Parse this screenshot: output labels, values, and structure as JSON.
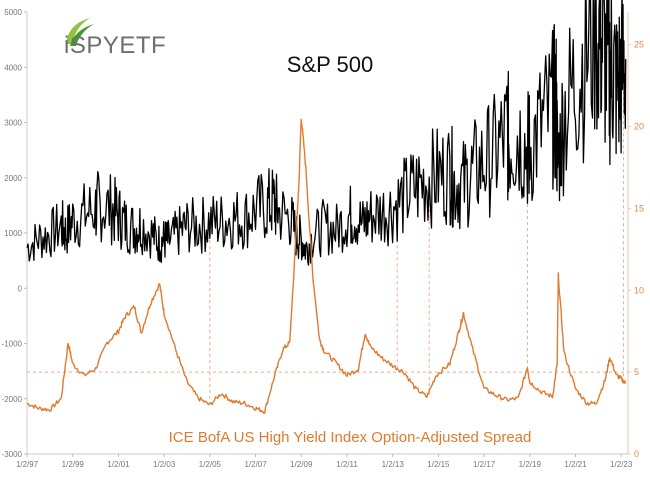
{
  "logo": {
    "text": "iSPYETF",
    "colors": {
      "swoosh_dark": "#3f9a36",
      "swoosh_light": "#8cc43c",
      "text": "#6d6e70"
    }
  },
  "chart_data": {
    "type": "line",
    "title": "S&P 500",
    "series_label": "ICE BofA US High Yield Index Option-Adjusted Spread",
    "colors": {
      "sp500": "#000000",
      "spread": "#e07a2e",
      "guides": "#f2a98a",
      "right_axis": "#e08a4a"
    },
    "x_ticks": [
      "1/2/97",
      "1/2/99",
      "1/2/01",
      "1/2/03",
      "1/2/05",
      "1/2/07",
      "1/2/09",
      "1/2/11",
      "1/2/13",
      "1/2/15",
      "1/2/17",
      "1/2/19",
      "1/2/21",
      "1/2/23"
    ],
    "xlim": [
      1997.0,
      2023.3
    ],
    "left_axis": {
      "ticks": [
        "5000",
        "4000",
        "3000",
        "2000",
        "1000",
        "0",
        "-1000",
        "-2000",
        "-3000"
      ],
      "ylim": [
        -3000,
        5000
      ]
    },
    "right_axis": {
      "ticks": [
        "25",
        "20",
        "15",
        "10",
        "5",
        "0"
      ],
      "ylim": [
        0,
        27
      ]
    },
    "grid": false,
    "guide_lines": {
      "vertical_years": [
        2005.0,
        2013.2,
        2014.6,
        2018.9,
        2023.1
      ],
      "horizontal_spread_value": 5
    },
    "series": [
      {
        "id": "sp500",
        "axis": "left",
        "x": [
          1997.0,
          1997.5,
          1998.0,
          1998.5,
          1998.7,
          1999.0,
          1999.5,
          2000.0,
          2000.2,
          2000.7,
          2001.0,
          2001.3,
          2001.7,
          2002.0,
          2002.5,
          2002.8,
          2003.0,
          2003.2,
          2003.6,
          2004.0,
          2004.5,
          2005.0,
          2005.5,
          2006.0,
          2006.5,
          2007.0,
          2007.5,
          2007.8,
          2008.0,
          2008.5,
          2008.8,
          2009.0,
          2009.2,
          2009.5,
          2010.0,
          2010.5,
          2011.0,
          2011.3,
          2011.7,
          2012.0,
          2012.5,
          2013.0,
          2013.5,
          2014.0,
          2014.5,
          2015.0,
          2015.5,
          2015.7,
          2016.1,
          2016.5,
          2017.0,
          2017.5,
          2018.0,
          2018.1,
          2018.5,
          2018.9,
          2019.0,
          2019.5,
          2020.0,
          2020.15,
          2020.22,
          2020.5,
          2021.0,
          2021.5,
          2021.99,
          2022.2,
          2022.45,
          2022.6,
          2022.8,
          2023.0,
          2023.2
        ],
        "values": [
          740,
          900,
          970,
          1130,
          1000,
          1230,
          1330,
          1450,
          1500,
          1440,
          1320,
          1160,
          1080,
          1150,
          970,
          810,
          880,
          850,
          1000,
          1130,
          1120,
          1200,
          1210,
          1270,
          1250,
          1420,
          1500,
          1550,
          1380,
          1280,
          950,
          900,
          700,
          920,
          1120,
          1050,
          1280,
          1340,
          1150,
          1300,
          1370,
          1460,
          1650,
          1830,
          1960,
          2050,
          2100,
          1920,
          1880,
          2100,
          2270,
          2450,
          2800,
          2650,
          2800,
          2500,
          2550,
          2950,
          3250,
          3380,
          2240,
          3150,
          3750,
          4300,
          4780,
          4400,
          3800,
          4150,
          3600,
          3850,
          4150
        ]
      },
      {
        "id": "spread",
        "axis": "right",
        "x": [
          1997.0,
          1997.5,
          1998.0,
          1998.5,
          1998.8,
          1999.0,
          1999.5,
          2000.0,
          2000.5,
          2001.0,
          2001.3,
          2001.7,
          2002.0,
          2002.4,
          2002.8,
          2003.0,
          2003.5,
          2004.0,
          2004.5,
          2005.0,
          2005.5,
          2006.0,
          2006.5,
          2007.0,
          2007.4,
          2007.8,
          2008.2,
          2008.5,
          2008.9,
          2009.0,
          2009.2,
          2009.5,
          2009.8,
          2010.0,
          2010.5,
          2011.0,
          2011.5,
          2011.8,
          2012.0,
          2012.5,
          2013.0,
          2013.5,
          2014.0,
          2014.5,
          2014.9,
          2015.5,
          2015.9,
          2016.1,
          2016.5,
          2017.0,
          2017.5,
          2018.0,
          2018.5,
          2018.9,
          2019.0,
          2019.5,
          2020.0,
          2020.2,
          2020.25,
          2020.5,
          2021.0,
          2021.5,
          2021.9,
          2022.3,
          2022.5,
          2022.8,
          2023.0,
          2023.2
        ],
        "values": [
          3.1,
          2.8,
          2.7,
          3.4,
          6.8,
          5.5,
          4.8,
          5.2,
          6.8,
          7.5,
          8.4,
          9.0,
          7.4,
          9.2,
          10.4,
          8.6,
          6.4,
          4.4,
          3.4,
          3.0,
          3.7,
          3.2,
          3.1,
          2.8,
          2.6,
          4.6,
          6.4,
          6.8,
          16.5,
          20.6,
          17.5,
          11.0,
          7.0,
          6.3,
          5.6,
          4.8,
          5.2,
          7.4,
          6.6,
          5.9,
          5.4,
          5.0,
          4.0,
          3.5,
          4.8,
          5.5,
          7.5,
          8.6,
          6.4,
          4.0,
          3.6,
          3.3,
          3.4,
          5.3,
          4.4,
          3.8,
          3.5,
          5.5,
          10.9,
          6.2,
          4.0,
          3.1,
          3.1,
          4.5,
          5.9,
          4.8,
          4.6,
          4.3
        ]
      }
    ]
  }
}
